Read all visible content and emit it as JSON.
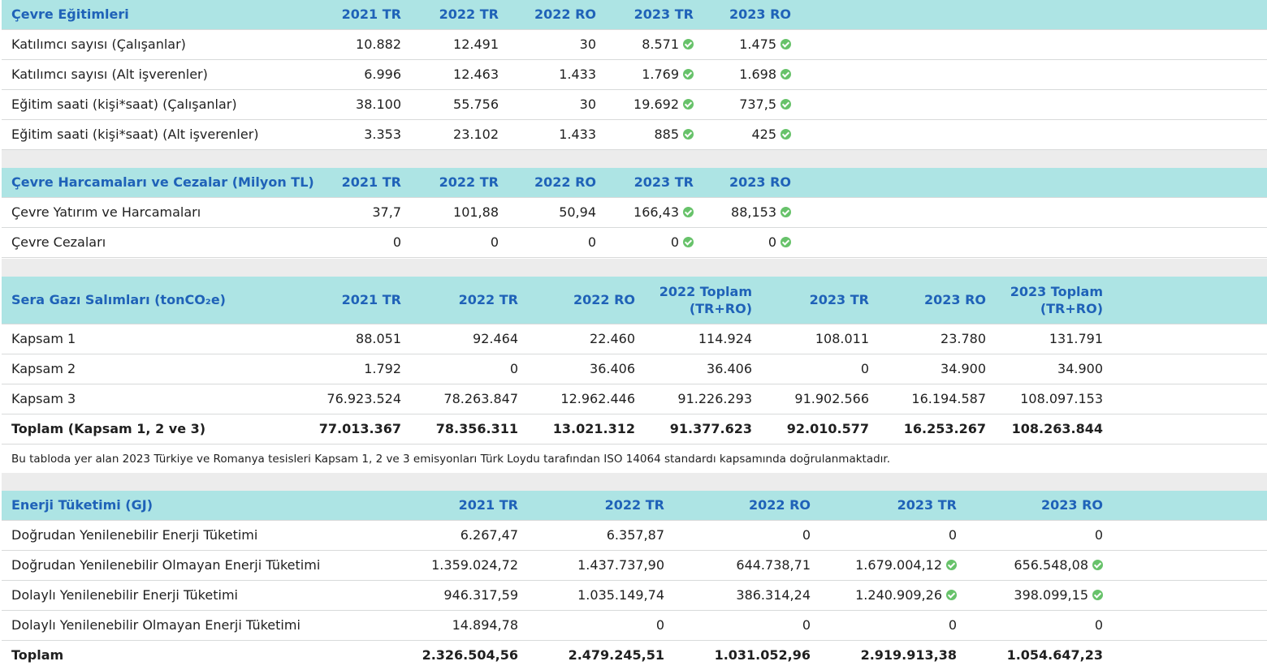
{
  "education": {
    "title": "Çevre Eğitimleri",
    "columns": [
      "2021 TR",
      "2022 TR",
      "2022 RO",
      "2023 TR",
      "2023 RO"
    ],
    "rows": [
      {
        "label": "Katılımcı sayısı (Çalışanlar)",
        "values": [
          "10.882",
          "12.491",
          "30",
          "8.571",
          "1.475"
        ]
      },
      {
        "label": "Katılımcı sayısı (Alt işverenler)",
        "values": [
          "6.996",
          "12.463",
          "1.433",
          "1.769",
          "1.698"
        ]
      },
      {
        "label": "Eğitim saati (kişi*saat) (Çalışanlar)",
        "values": [
          "38.100",
          "55.756",
          "30",
          "19.692",
          "737,5"
        ]
      },
      {
        "label": "Eğitim saati (kişi*saat) (Alt işverenler)",
        "values": [
          "3.353",
          "23.102",
          "1.433",
          "885",
          "425"
        ]
      }
    ]
  },
  "expenses": {
    "title": "Çevre Harcamaları ve Cezalar (Milyon TL)",
    "columns": [
      "2021 TR",
      "2022 TR",
      "2022 RO",
      "2023 TR",
      "2023 RO"
    ],
    "rows": [
      {
        "label": "Çevre Yatırım ve Harcamaları",
        "values": [
          "37,7",
          "101,88",
          "50,94",
          "166,43",
          "88,153"
        ]
      },
      {
        "label": "Çevre Cezaları",
        "values": [
          "0",
          "0",
          "0",
          "0",
          "0"
        ]
      }
    ]
  },
  "ghg": {
    "title": "Sera Gazı Salımları (tonCO₂e)",
    "columns": [
      "2021 TR",
      "2022 TR",
      "2022 RO",
      "2022 Toplam",
      "2023 TR",
      "2023 RO",
      "2023 Toplam"
    ],
    "columns_line2": [
      "",
      "",
      "",
      "(TR+RO)",
      "",
      "",
      "(TR+RO)"
    ],
    "rows": [
      {
        "label": "Kapsam 1",
        "values": [
          "88.051",
          "92.464",
          "22.460",
          "114.924",
          "108.011",
          "23.780",
          "131.791"
        ]
      },
      {
        "label": "Kapsam 2",
        "values": [
          "1.792",
          "0",
          "36.406",
          "36.406",
          "0",
          "34.900",
          "34.900"
        ]
      },
      {
        "label": "Kapsam 3",
        "values": [
          "76.923.524",
          "78.263.847",
          "12.962.446",
          "91.226.293",
          "91.902.566",
          "16.194.587",
          "108.097.153"
        ]
      },
      {
        "label": "Toplam (Kapsam 1, 2 ve 3)",
        "values": [
          "77.013.367",
          "78.356.311",
          "13.021.312",
          "91.377.623",
          "92.010.577",
          "16.253.267",
          "108.263.844"
        ]
      }
    ],
    "note": "Bu tabloda yer alan 2023 Türkiye ve Romanya tesisleri Kapsam 1, 2 ve 3 emisyonları Türk Loydu tarafından ISO 14064 standardı kapsamında doğrulanmaktadır."
  },
  "energy": {
    "title": "Enerji Tüketimi (GJ)",
    "columns": [
      "2021 TR",
      "2022 TR",
      "2022 RO",
      "2023 TR",
      "2023 RO"
    ],
    "rows": [
      {
        "label": "Doğrudan Yenilenebilir Enerji Tüketimi",
        "values": [
          "6.267,47",
          "6.357,87",
          "0",
          "0",
          "0"
        ]
      },
      {
        "label": "Doğrudan Yenilenebilir Olmayan Enerji Tüketimi",
        "values": [
          "1.359.024,72",
          "1.437.737,90",
          "644.738,71",
          "1.679.004,12",
          "656.548,08"
        ]
      },
      {
        "label": "Dolaylı Yenilenebilir Enerji Tüketimi",
        "values": [
          "946.317,59",
          "1.035.149,74",
          "386.314,24",
          "1.240.909,26",
          "398.099,15"
        ]
      },
      {
        "label": "Dolaylı Yenilenebilir Olmayan Enerji Tüketimi",
        "values": [
          "14.894,78",
          "0",
          "0",
          "0",
          "0"
        ]
      },
      {
        "label": "Toplam",
        "values": [
          "2.326.504,56",
          "2.479.245,51",
          "1.031.052,96",
          "2.919.913,38",
          "1.054.647,23"
        ]
      }
    ]
  },
  "check_icon": "verified-check-icon",
  "colors": {
    "header_bg": "#ade4e4",
    "header_text": "#1f62b8",
    "check": "#67c26a",
    "separator": "#ececec"
  }
}
